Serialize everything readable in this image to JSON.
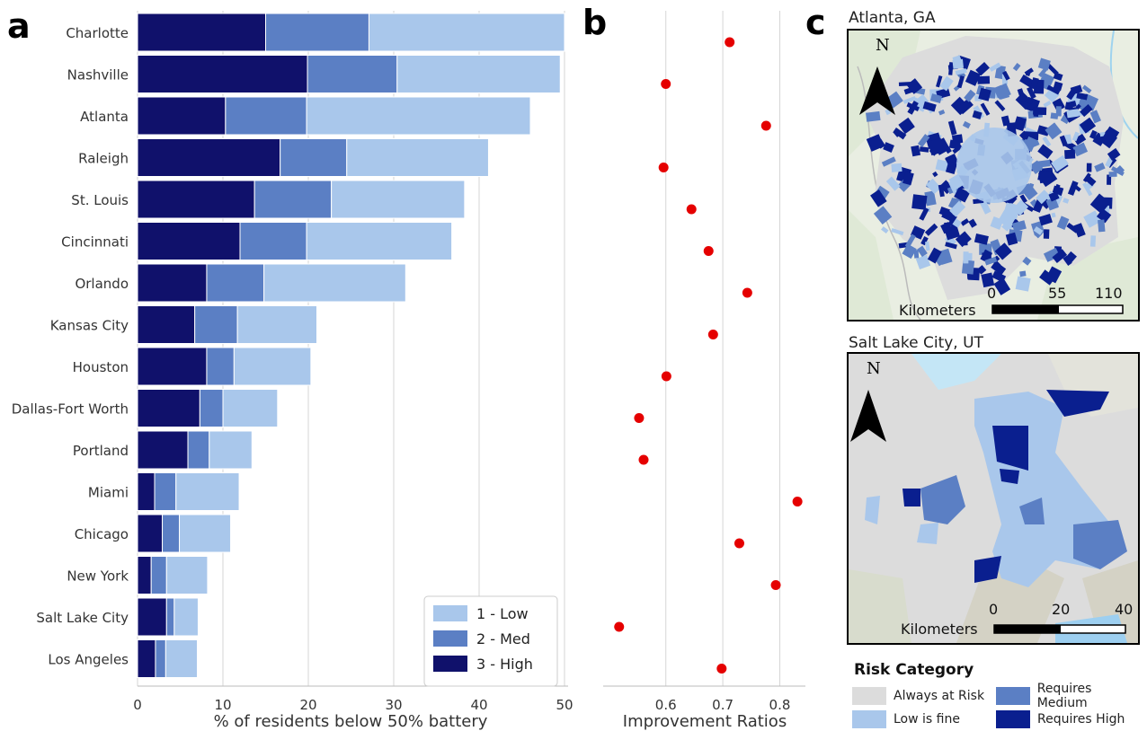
{
  "panel_labels": {
    "a": "a",
    "b": "b",
    "c": "c"
  },
  "colors": {
    "low": "#a9c7eb",
    "med": "#5b7fc4",
    "high": "#10116b",
    "dot": "#e50000",
    "always": "#dcdcdc",
    "req_high_map": "#0a1f8f"
  },
  "chart_data": [
    {
      "type": "bar",
      "orientation": "horizontal",
      "stacked": true,
      "categories": [
        "Charlotte",
        "Nashville",
        "Atlanta",
        "Raleigh",
        "St. Louis",
        "Cincinnati",
        "Orlando",
        "Kansas City",
        "Houston",
        "Dallas-Fort Worth",
        "Portland",
        "Miami",
        "Chicago",
        "New York",
        "Salt Lake City",
        "Los Angeles"
      ],
      "series": [
        {
          "name": "3 - High",
          "values": [
            15.0,
            19.9,
            10.3,
            16.7,
            13.7,
            12.0,
            8.1,
            6.7,
            8.1,
            7.3,
            5.9,
            2.0,
            2.9,
            1.6,
            3.4,
            2.1
          ]
        },
        {
          "name": "2 - Med",
          "values": [
            12.1,
            10.5,
            9.5,
            7.8,
            9.0,
            7.8,
            6.7,
            5.0,
            3.2,
            2.7,
            2.5,
            2.5,
            2.0,
            1.8,
            0.9,
            1.2
          ]
        },
        {
          "name": "1 - Low",
          "values": [
            22.9,
            19.1,
            26.2,
            16.6,
            15.6,
            17.0,
            16.6,
            9.3,
            9.0,
            6.4,
            5.0,
            7.4,
            6.0,
            4.8,
            2.8,
            3.7
          ]
        }
      ],
      "xlabel": "% of residents below 50% battery",
      "xlim": [
        0,
        50
      ],
      "xticks": [
        0,
        10,
        20,
        30,
        40,
        50
      ],
      "grid": "vertical",
      "legend": "bottom-right"
    },
    {
      "type": "scatter",
      "categories": [
        "Charlotte",
        "Nashville",
        "Atlanta",
        "Raleigh",
        "St. Louis",
        "Cincinnati",
        "Orlando",
        "Kansas City",
        "Houston",
        "Dallas-Fort Worth",
        "Portland",
        "Miami",
        "Chicago",
        "New York",
        "Salt Lake City",
        "Los Angeles"
      ],
      "values": [
        0.712,
        0.6,
        0.776,
        0.596,
        0.645,
        0.675,
        0.743,
        0.683,
        0.601,
        0.553,
        0.561,
        0.831,
        0.729,
        0.793,
        0.518,
        0.698
      ],
      "xlabel": "Improvement Ratios",
      "xlim": [
        0.49,
        0.845
      ],
      "xticks": [
        0.6,
        0.7,
        0.8
      ],
      "grid": "vertical"
    }
  ],
  "maps": {
    "atlanta": {
      "title": "Atlanta, GA",
      "north": "N",
      "scale_ticks": [
        "0",
        "55",
        "110"
      ],
      "scale_unit": "Kilometers"
    },
    "slc": {
      "title": "Salt Lake City, UT",
      "north": "N",
      "scale_ticks": [
        "0",
        "20",
        "40"
      ],
      "scale_unit": "Kilometers"
    }
  },
  "risk_legend": {
    "title": "Risk Category",
    "items": [
      {
        "label": "Always at Risk",
        "color": "#dcdcdc"
      },
      {
        "label": "Requires Medium",
        "color": "#5b7fc4"
      },
      {
        "label": "Low is fine",
        "color": "#a9c7eb"
      },
      {
        "label": "Requires High",
        "color": "#0a1f8f"
      }
    ]
  }
}
